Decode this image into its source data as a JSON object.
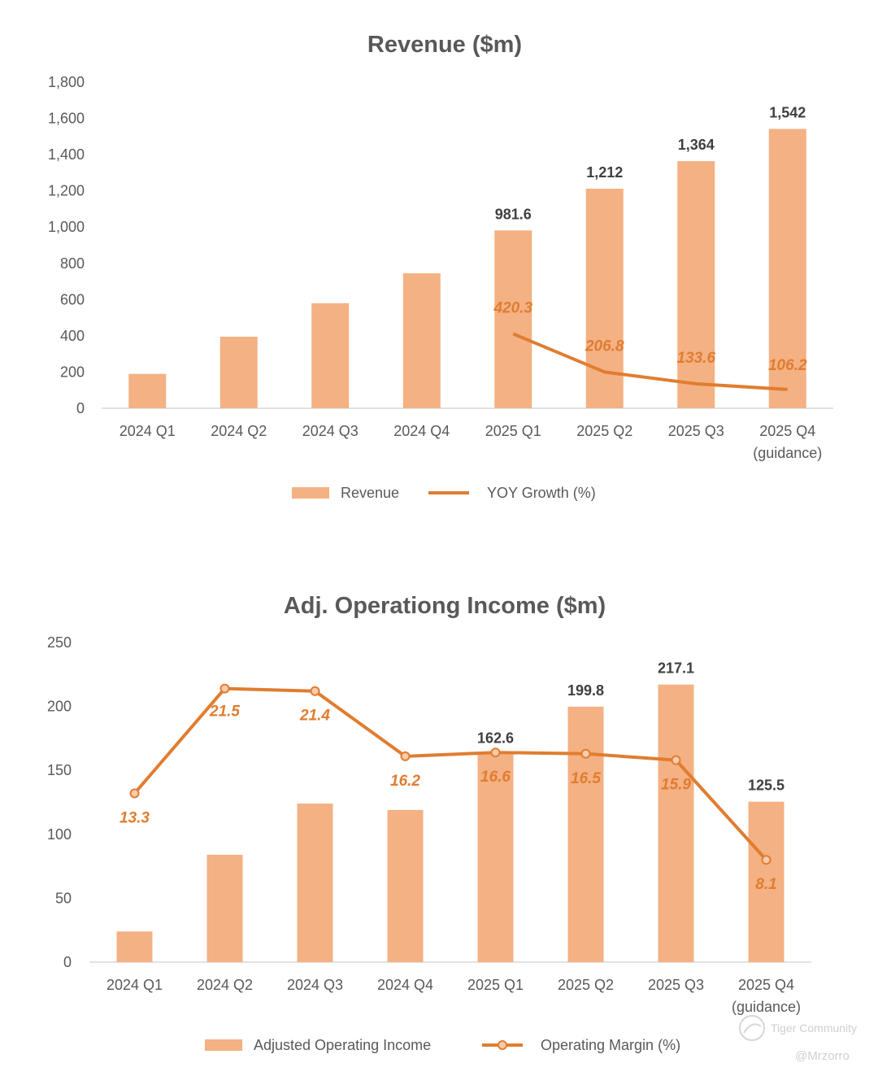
{
  "chart_data": [
    {
      "type": "bar",
      "title": "Revenue ($m)",
      "categories": [
        "2024 Q1",
        "2024 Q2",
        "2024 Q3",
        "2024 Q4",
        "2025 Q1",
        "2025 Q2",
        "2025 Q3",
        "2025 Q4"
      ],
      "category_sublabels": [
        "",
        "",
        "",
        "",
        "",
        "",
        "",
        "(guidance)"
      ],
      "yticks": [
        "0",
        "200",
        "400",
        "600",
        "800",
        "1,000",
        "1,200",
        "1,400",
        "1,600",
        "1,800"
      ],
      "ylim": [
        0,
        1800
      ],
      "series": [
        {
          "name": "Revenue",
          "kind": "bar",
          "color": "#F4B183",
          "values": [
            190,
            395,
            580,
            745,
            981.6,
            1212,
            1364,
            1542
          ],
          "labels": [
            "",
            "",
            "",
            "",
            "981.6",
            "1,212",
            "1,364",
            "1,542"
          ]
        },
        {
          "name": "YOY Growth (%)",
          "kind": "line",
          "color": "#E07D30",
          "markers": false,
          "plot_values": [
            null,
            null,
            null,
            null,
            411,
            200,
            135,
            104
          ],
          "values": [
            null,
            null,
            null,
            null,
            420.3,
            206.8,
            133.6,
            106.2
          ],
          "labels": [
            "",
            "",
            "",
            "",
            "420.3",
            "206.8",
            "133.6",
            "106.2"
          ]
        }
      ],
      "legend_position": "bottom"
    },
    {
      "type": "bar",
      "title": "Adj. Operationg Income ($m)",
      "categories": [
        "2024 Q1",
        "2024 Q2",
        "2024 Q3",
        "2024 Q4",
        "2025 Q1",
        "2025 Q2",
        "2025 Q3",
        "2025 Q4"
      ],
      "category_sublabels": [
        "",
        "",
        "",
        "",
        "",
        "",
        "",
        "(guidance)"
      ],
      "yticks": [
        "0",
        "50",
        "100",
        "150",
        "200",
        "250"
      ],
      "ylim": [
        0,
        250
      ],
      "series": [
        {
          "name": "Adjusted Operating Income",
          "kind": "bar",
          "color": "#F4B183",
          "values": [
            24,
            84,
            124,
            119,
            162.6,
            199.8,
            217.1,
            125.5
          ],
          "labels": [
            "",
            "",
            "",
            "",
            "162.6",
            "199.8",
            "217.1",
            "125.5"
          ]
        },
        {
          "name": "Operating Margin (%)",
          "kind": "line",
          "color": "#E07D30",
          "markers": true,
          "plot_values": [
            132,
            214,
            212,
            161,
            164,
            163,
            158,
            80
          ],
          "values": [
            13.3,
            21.5,
            21.4,
            16.2,
            16.6,
            16.5,
            15.9,
            8.1
          ],
          "labels": [
            "13.3",
            "21.5",
            "21.4",
            "16.2",
            "16.6",
            "16.5",
            "15.9",
            "8.1"
          ]
        }
      ],
      "legend_position": "bottom"
    }
  ],
  "watermark": {
    "brand": "Tiger Community",
    "author": "@Mrzorro"
  }
}
